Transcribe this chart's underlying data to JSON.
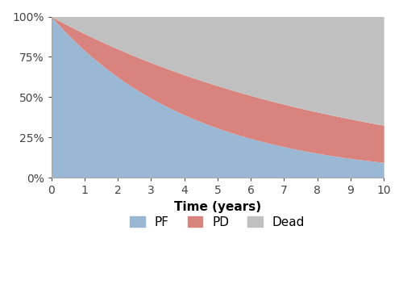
{
  "title": "",
  "xlabel": "Time (years)",
  "ylabel": "",
  "x_max": 10,
  "yticks": [
    0,
    0.25,
    0.5,
    0.75,
    1.0
  ],
  "ytick_labels": [
    "0%",
    "25%",
    "50%",
    "75%",
    "100%"
  ],
  "xticks": [
    0,
    1,
    2,
    3,
    4,
    5,
    6,
    7,
    8,
    9,
    10
  ],
  "color_pf": "#9ab7d3",
  "color_pd": "#d9837e",
  "color_dead": "#c0c0c0",
  "legend_labels": [
    "PF",
    "PD",
    "Dead"
  ],
  "pf_lambda": 0.235,
  "os_lambda": 0.112,
  "background_color": "#ffffff",
  "figsize": [
    5.0,
    3.63
  ],
  "dpi": 100
}
